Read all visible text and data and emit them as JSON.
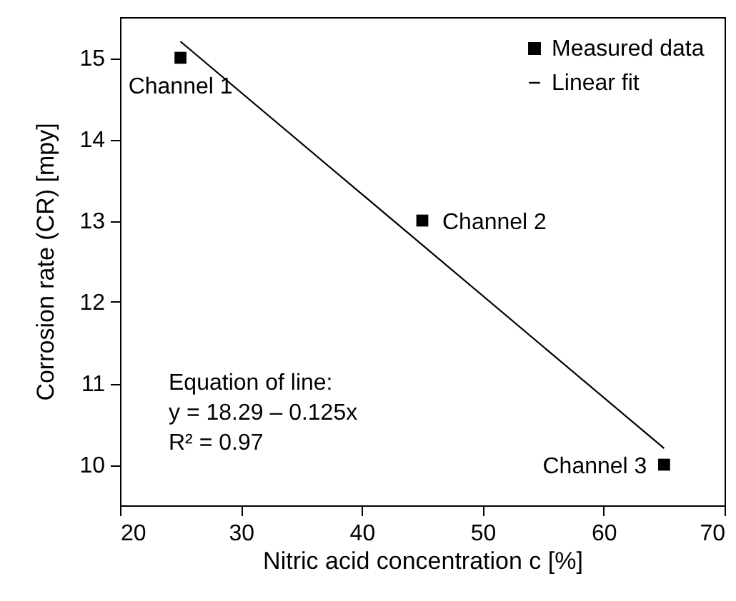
{
  "chart_data": {
    "type": "scatter",
    "xlabel": "Nitric acid concentration c [%]",
    "ylabel": "Corrosion rate (CR) [mpy]",
    "xlim": [
      20,
      70
    ],
    "xticks": [
      20,
      30,
      40,
      50,
      60,
      70
    ],
    "ylim": [
      9.5,
      15.5
    ],
    "yticks": [
      10,
      11,
      12,
      13,
      14,
      15
    ],
    "legend": "top right",
    "series": [
      {
        "name": "Measured data",
        "marker": "square",
        "color": "#000000",
        "x": [
          25,
          45,
          65
        ],
        "values": [
          15,
          13,
          10
        ]
      },
      {
        "name": "Linear fit",
        "type": "line",
        "line_style": "solid",
        "color": "#000000",
        "x": [
          25,
          65
        ],
        "values": [
          15.2,
          10.2
        ]
      }
    ],
    "annotations": [
      {
        "text": "Channel 1",
        "x": 25,
        "y": 15
      },
      {
        "text": "Channel 2",
        "x": 45,
        "y": 13
      },
      {
        "text": "Channel 3",
        "x": 65,
        "y": 10
      },
      "Equation of line:",
      "y = 18.29 – 0.125x",
      "R² = 0.97"
    ]
  }
}
